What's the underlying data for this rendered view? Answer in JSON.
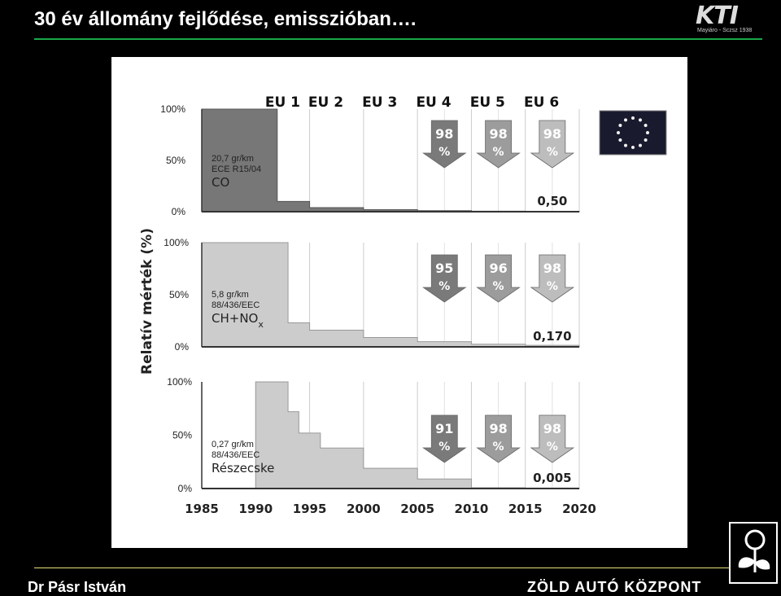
{
  "title": "30 év állomány fejlődése, emisszióban….",
  "logo": {
    "main": "KTI",
    "sub": "Mayiáro - Sczsz 1938"
  },
  "footer": {
    "author": "Dr Pásr István",
    "right": "ZÖLD AUTÓ KÖZPONT"
  },
  "icons": {
    "eu_flag": "eu-flag-icon",
    "reduction_arrow": "down-arrow-icon",
    "leaf_logo": "plant-leaf-icon"
  },
  "colors": {
    "co": "#777777",
    "nox": "#cccccc",
    "pm": "#cccccc",
    "arrow_dark": "#7a7a7a",
    "arrow_mid": "#9c9c9c",
    "arrow_light": "#bdbdbd",
    "eu_blue": "#1a1a2e",
    "eu_star": "#f3f3f3"
  },
  "chart_data": {
    "type": "area",
    "ylabel": "Relatív mérték (%)",
    "x_ticks": [
      1985,
      1990,
      1995,
      2000,
      2005,
      2010,
      2015,
      2020
    ],
    "xlim": [
      1985,
      2020
    ],
    "y_ticks": [
      "0%",
      "50%",
      "100%"
    ],
    "ylim": [
      0,
      100
    ],
    "grid": true,
    "eu_stages": [
      {
        "label": "EU 1",
        "year": 1992.5
      },
      {
        "label": "EU 2",
        "year": 1996.5
      },
      {
        "label": "EU 3",
        "year": 2001.5
      },
      {
        "label": "EU 4",
        "year": 2006.5
      },
      {
        "label": "EU 5",
        "year": 2011.5
      },
      {
        "label": "EU 6",
        "year": 2016.5
      }
    ],
    "panels": [
      {
        "pollutant": "CO",
        "limit": "20,7 gr/km",
        "regulation": "ECE R15/04",
        "color_key": "co",
        "steps": [
          [
            1985,
            100
          ],
          [
            1992,
            10
          ],
          [
            1995,
            4
          ],
          [
            2000,
            2
          ],
          [
            2005,
            1
          ],
          [
            2010,
            0.5
          ],
          [
            2015,
            0.3
          ]
        ],
        "arrows": [
          {
            "value": "98",
            "unit": "%",
            "year": 2007.5,
            "shade": "arrow_dark"
          },
          {
            "value": "98",
            "unit": "%",
            "year": 2012.5,
            "shade": "arrow_mid"
          },
          {
            "value": "98",
            "unit": "%",
            "year": 2017.5,
            "shade": "arrow_light"
          }
        ],
        "final_value": "0,50"
      },
      {
        "pollutant": "CH+NO",
        "pollutant_sub": "x",
        "limit": "5,8 gr/km",
        "regulation": "88/436/EEC",
        "color_key": "nox",
        "steps": [
          [
            1985,
            100
          ],
          [
            1993,
            23
          ],
          [
            1995,
            16
          ],
          [
            2000,
            9
          ],
          [
            2005,
            5
          ],
          [
            2010,
            2.5
          ],
          [
            2015,
            1.5
          ]
        ],
        "arrows": [
          {
            "value": "95",
            "unit": "%",
            "year": 2007.5,
            "shade": "arrow_dark"
          },
          {
            "value": "96",
            "unit": "%",
            "year": 2012.5,
            "shade": "arrow_mid"
          },
          {
            "value": "98",
            "unit": "%",
            "year": 2017.5,
            "shade": "arrow_light"
          }
        ],
        "final_value": "0,170"
      },
      {
        "pollutant": "Részecske",
        "limit": "0,27 gr/km",
        "regulation": "88/436/EEC",
        "color_key": "pm",
        "steps": [
          [
            1990,
            100
          ],
          [
            1993,
            72
          ],
          [
            1994,
            52
          ],
          [
            1996,
            38
          ],
          [
            2000,
            19
          ],
          [
            2005,
            9
          ],
          [
            2010,
            0.8
          ],
          [
            2015,
            0.5
          ]
        ],
        "arrows": [
          {
            "value": "91",
            "unit": "%",
            "year": 2007.5,
            "shade": "arrow_dark"
          },
          {
            "value": "98",
            "unit": "%",
            "year": 2012.5,
            "shade": "arrow_mid"
          },
          {
            "value": "98",
            "unit": "%",
            "year": 2017.5,
            "shade": "arrow_light"
          }
        ],
        "final_value": "0,005"
      }
    ]
  }
}
